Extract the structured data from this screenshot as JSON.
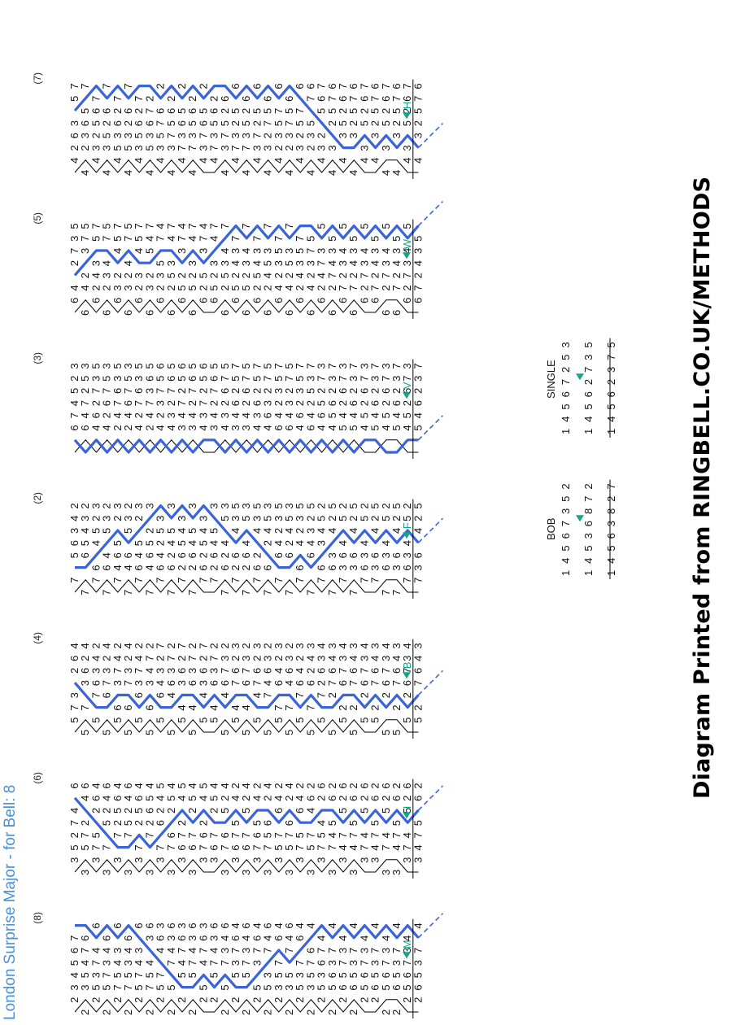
{
  "title": "London Surprise Major - for Bell: 8",
  "footer": "Diagram Printed from RINGBELL.CO.UK/METHODS",
  "colors": {
    "title": "#4a90d9",
    "working_line": "#3b64d8",
    "hunt_line": "#000000",
    "marker": "#17a589",
    "black_line": "#000000"
  },
  "lead_starts": [
    "12345678",
    "13527486",
    "15738264",
    "17856342",
    "18674523",
    "16482735",
    "14263857"
  ],
  "leads": [
    {
      "label": "(8)",
      "place_bell": "M"
    },
    {
      "label": "(6)",
      "place_bell": "I"
    },
    {
      "label": "(4)",
      "place_bell": "B"
    },
    {
      "label": "(2)",
      "place_bell": "F"
    },
    {
      "label": "(3)",
      "place_bell": "V"
    },
    {
      "label": "(5)",
      "place_bell": "W"
    },
    {
      "label": "(7)",
      "place_bell": "H"
    }
  ],
  "place_notation": [
    "3",
    "x",
    "36",
    "x",
    "4",
    "x",
    "5",
    "x",
    "36",
    "x",
    "4",
    "x",
    "2",
    "58",
    "x",
    "4",
    "x",
    "36",
    "x",
    "4",
    "x",
    "5",
    "x",
    "36",
    "x",
    "4",
    "x",
    "2",
    "x",
    "2",
    "x",
    "2",
    "x",
    "2",
    "x",
    "2",
    "x",
    "2"
  ],
  "calls": [
    {
      "name": "BOB",
      "rows_text": [
        "14567352",
        "14536872",
        "14563827"
      ]
    },
    {
      "name": "SINGLE",
      "rows_text": [
        "14567253",
        "14562735",
        "14562375"
      ]
    }
  ],
  "call_colors": [
    "#e6c400",
    "#000000",
    "#00e0ff",
    "#ff7f50",
    "#0a8a0a",
    "#8b008b",
    "#ff3030",
    "#3b64d8"
  ]
}
